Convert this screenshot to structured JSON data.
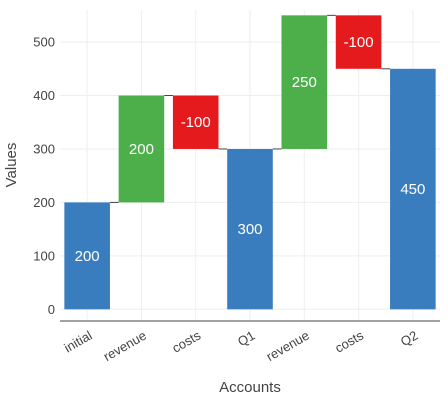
{
  "chart_data": {
    "type": "bar",
    "subtype": "waterfall",
    "title": "",
    "xlabel": "Accounts",
    "ylabel": "Values",
    "ylim": [
      -20,
      560
    ],
    "yticks": [
      0,
      100,
      200,
      300,
      400,
      500
    ],
    "grid": true,
    "categories": [
      "initial",
      "revenue",
      "costs",
      "Q1",
      "revenue",
      "costs",
      "Q2"
    ],
    "values": [
      200,
      200,
      -100,
      300,
      250,
      -100,
      450
    ],
    "measures": [
      "absolute",
      "relative",
      "relative",
      "total",
      "relative",
      "relative",
      "total"
    ],
    "data_labels": [
      "200",
      "200",
      "-100",
      "300",
      "250",
      "-100",
      "450"
    ],
    "colors": {
      "total": "#3a7dbf",
      "increase": "#4caf4a",
      "decrease": "#e41a1c",
      "connector": "#444444",
      "grid": "#eeeeee",
      "text": "#444444"
    }
  }
}
